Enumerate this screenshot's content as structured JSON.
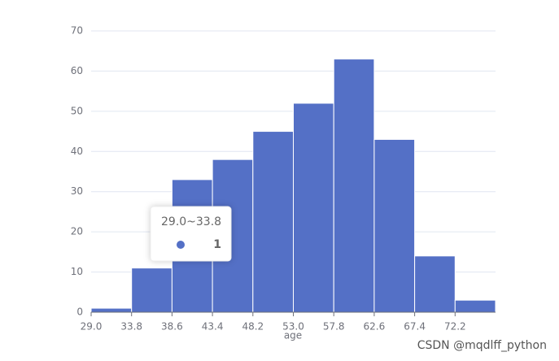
{
  "chart_data": {
    "type": "histogram",
    "x_label": "age",
    "bins": [
      29.0,
      33.8,
      38.6,
      43.4,
      48.2,
      53.0,
      57.8,
      62.6,
      67.4,
      72.2,
      77.0
    ],
    "values": [
      1,
      11,
      33,
      38,
      45,
      52,
      63,
      43,
      14,
      3
    ],
    "color": "#5470c6",
    "xlim": [
      29.0,
      77.0
    ],
    "xticks": [
      {
        "value": 29.0,
        "label": "29.0"
      },
      {
        "value": 33.8,
        "label": "33.8"
      },
      {
        "value": 38.6,
        "label": "38.6"
      },
      {
        "value": 43.4,
        "label": "43.4"
      },
      {
        "value": 48.2,
        "label": "48.2"
      },
      {
        "value": 53.0,
        "label": "53.0"
      },
      {
        "value": 57.8,
        "label": "57.8"
      },
      {
        "value": 62.6,
        "label": "62.6"
      },
      {
        "value": 67.4,
        "label": "67.4"
      },
      {
        "value": 72.2,
        "label": "72.2"
      }
    ],
    "ylim": [
      0,
      70
    ],
    "yticks": [
      0,
      10,
      20,
      30,
      40,
      50,
      60,
      70
    ],
    "grid": true
  },
  "tooltip": {
    "title": "29.0~33.8",
    "value": 1
  },
  "watermark": "CSDN @mqdlff_python"
}
